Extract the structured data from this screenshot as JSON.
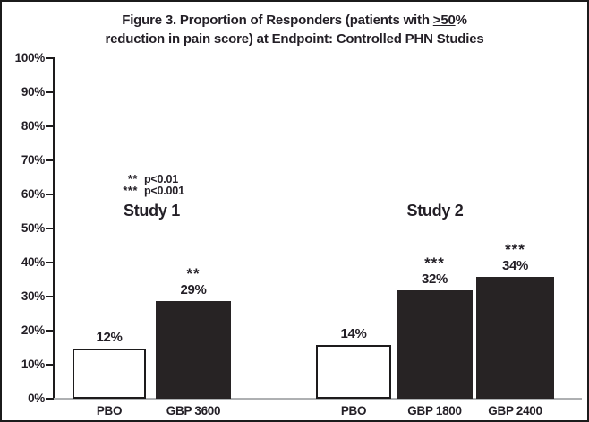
{
  "figure_title": {
    "line1_prefix": "Figure 3. Proportion of Responders (patients with ",
    "line1_underlined": ">50",
    "line1_suffix": "%",
    "line2": "reduction in pain score) at Endpoint: Controlled PHN Studies"
  },
  "legend": {
    "entries": [
      {
        "stars": "**",
        "label": "p<0.01"
      },
      {
        "stars": "***",
        "label": "p<0.001"
      }
    ]
  },
  "y_axis": {
    "tick_labels": [
      "0%",
      "10%",
      "20%",
      "30%",
      "40%",
      "50%",
      "60%",
      "70%",
      "80%",
      "90%",
      "100%"
    ],
    "min": 0,
    "max": 100,
    "step": 10
  },
  "colors": {
    "bar_dark_fill": "#272324",
    "bar_light_fill": "#ffffff",
    "bar_border": "#1d1b1c",
    "axis": "#1d1b1c",
    "baseline_gray": "#aeb0b2",
    "text": "#231f26",
    "background": "#ffffff"
  },
  "chart_data": {
    "type": "bar",
    "title": "Figure 3. Proportion of Responders (patients with >50% reduction in pain score) at Endpoint: Controlled PHN Studies",
    "xlabel": "",
    "ylabel": "",
    "ylim": [
      0,
      100
    ],
    "y_tick_step": 10,
    "grid": false,
    "legend_position": "upper-left-inside",
    "annotations": [
      "** p<0.01",
      "*** p<0.001"
    ],
    "groups": [
      {
        "name": "Study 1",
        "bars": [
          {
            "label": "PBO",
            "value": 12,
            "value_label": "12%",
            "significance": "",
            "fill": "white",
            "drawn_height_pct": 14.7
          },
          {
            "label": "GBP 3600",
            "value": 29,
            "value_label": "29%",
            "significance": "**",
            "fill": "black",
            "drawn_height_pct": 28.7
          }
        ]
      },
      {
        "name": "Study 2",
        "bars": [
          {
            "label": "PBO",
            "value": 14,
            "value_label": "14%",
            "significance": "",
            "fill": "white",
            "drawn_height_pct": 15.8
          },
          {
            "label": "GBP 1800",
            "value": 32,
            "value_label": "32%",
            "significance": "***",
            "fill": "black",
            "drawn_height_pct": 31.8
          },
          {
            "label": "GBP 2400",
            "value": 34,
            "value_label": "34%",
            "significance": "***",
            "fill": "black",
            "drawn_height_pct": 35.8
          }
        ]
      }
    ]
  }
}
